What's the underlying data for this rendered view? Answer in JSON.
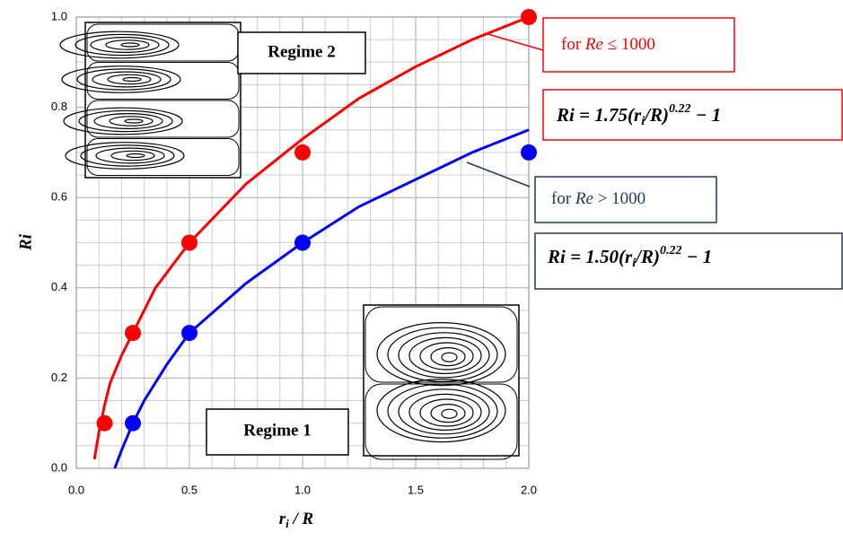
{
  "chart_data": {
    "type": "scatter",
    "xlabel": {
      "main": "r",
      "sub": "i",
      "rest": " / R"
    },
    "ylabel": "Ri",
    "xlim": [
      0,
      2
    ],
    "ylim": [
      0,
      1
    ],
    "xticks": [
      {
        "value": 0,
        "label": "0.0"
      },
      0.5,
      {
        "value": 1,
        "label": "1.0"
      },
      1.5,
      {
        "value": 2,
        "label": "2.0"
      }
    ],
    "yticks": [
      {
        "value": 0,
        "label": "0.0"
      },
      0.2,
      0.4,
      0.6,
      0.8,
      {
        "value": 1,
        "label": "1.0"
      }
    ],
    "grid": true,
    "minor_grid_divisions": {
      "x": 5,
      "y": 4
    },
    "series": [
      {
        "mode": "markers",
        "color": "#ff0000",
        "x": [
          0.125,
          0.25,
          0.5,
          1.0,
          2.0
        ],
        "values": [
          0.1,
          0.3,
          0.5,
          0.7,
          1.0
        ]
      },
      {
        "mode": "markers",
        "color": "#0000ff",
        "x": [
          0.25,
          0.5,
          1.0,
          2.0
        ],
        "values": [
          0.1,
          0.3,
          0.5,
          0.7
        ]
      },
      {
        "mode": "line",
        "color": "#ff0000",
        "x": [
          0.08,
          0.1,
          0.125,
          0.15,
          0.2,
          0.25,
          0.35,
          0.5,
          0.75,
          1.0,
          1.25,
          1.5,
          1.75,
          2.0
        ],
        "values": [
          0.02,
          0.08,
          0.14,
          0.19,
          0.25,
          0.3,
          0.4,
          0.5,
          0.63,
          0.73,
          0.82,
          0.89,
          0.95,
          1.0
        ]
      },
      {
        "mode": "line",
        "color": "#0000ff",
        "x": [
          0.17,
          0.2,
          0.25,
          0.3,
          0.4,
          0.5,
          0.75,
          1.0,
          1.25,
          1.5,
          1.75,
          2.0
        ],
        "values": [
          0.0,
          0.04,
          0.1,
          0.15,
          0.23,
          0.3,
          0.41,
          0.5,
          0.58,
          0.64,
          0.7,
          0.75
        ]
      }
    ],
    "annotations": {
      "regime2": "Regime 2",
      "regime1": "Regime 1",
      "cond_high": {
        "pre": "for ",
        "var": "Re",
        "post": " ≤ 1000"
      },
      "formula_high": {
        "pre": "Ri = 1.75(r",
        "sub": "i",
        "mid": "/R)",
        "sup": "0.22",
        "post": " − 1"
      },
      "cond_low": {
        "pre": "for ",
        "var": "Re",
        "post": " > 1000"
      },
      "formula_low": {
        "pre": "Ri = 1.50(r",
        "sub": "i",
        "mid": "/R)",
        "sup": "0.22",
        "post": " − 1"
      }
    }
  }
}
